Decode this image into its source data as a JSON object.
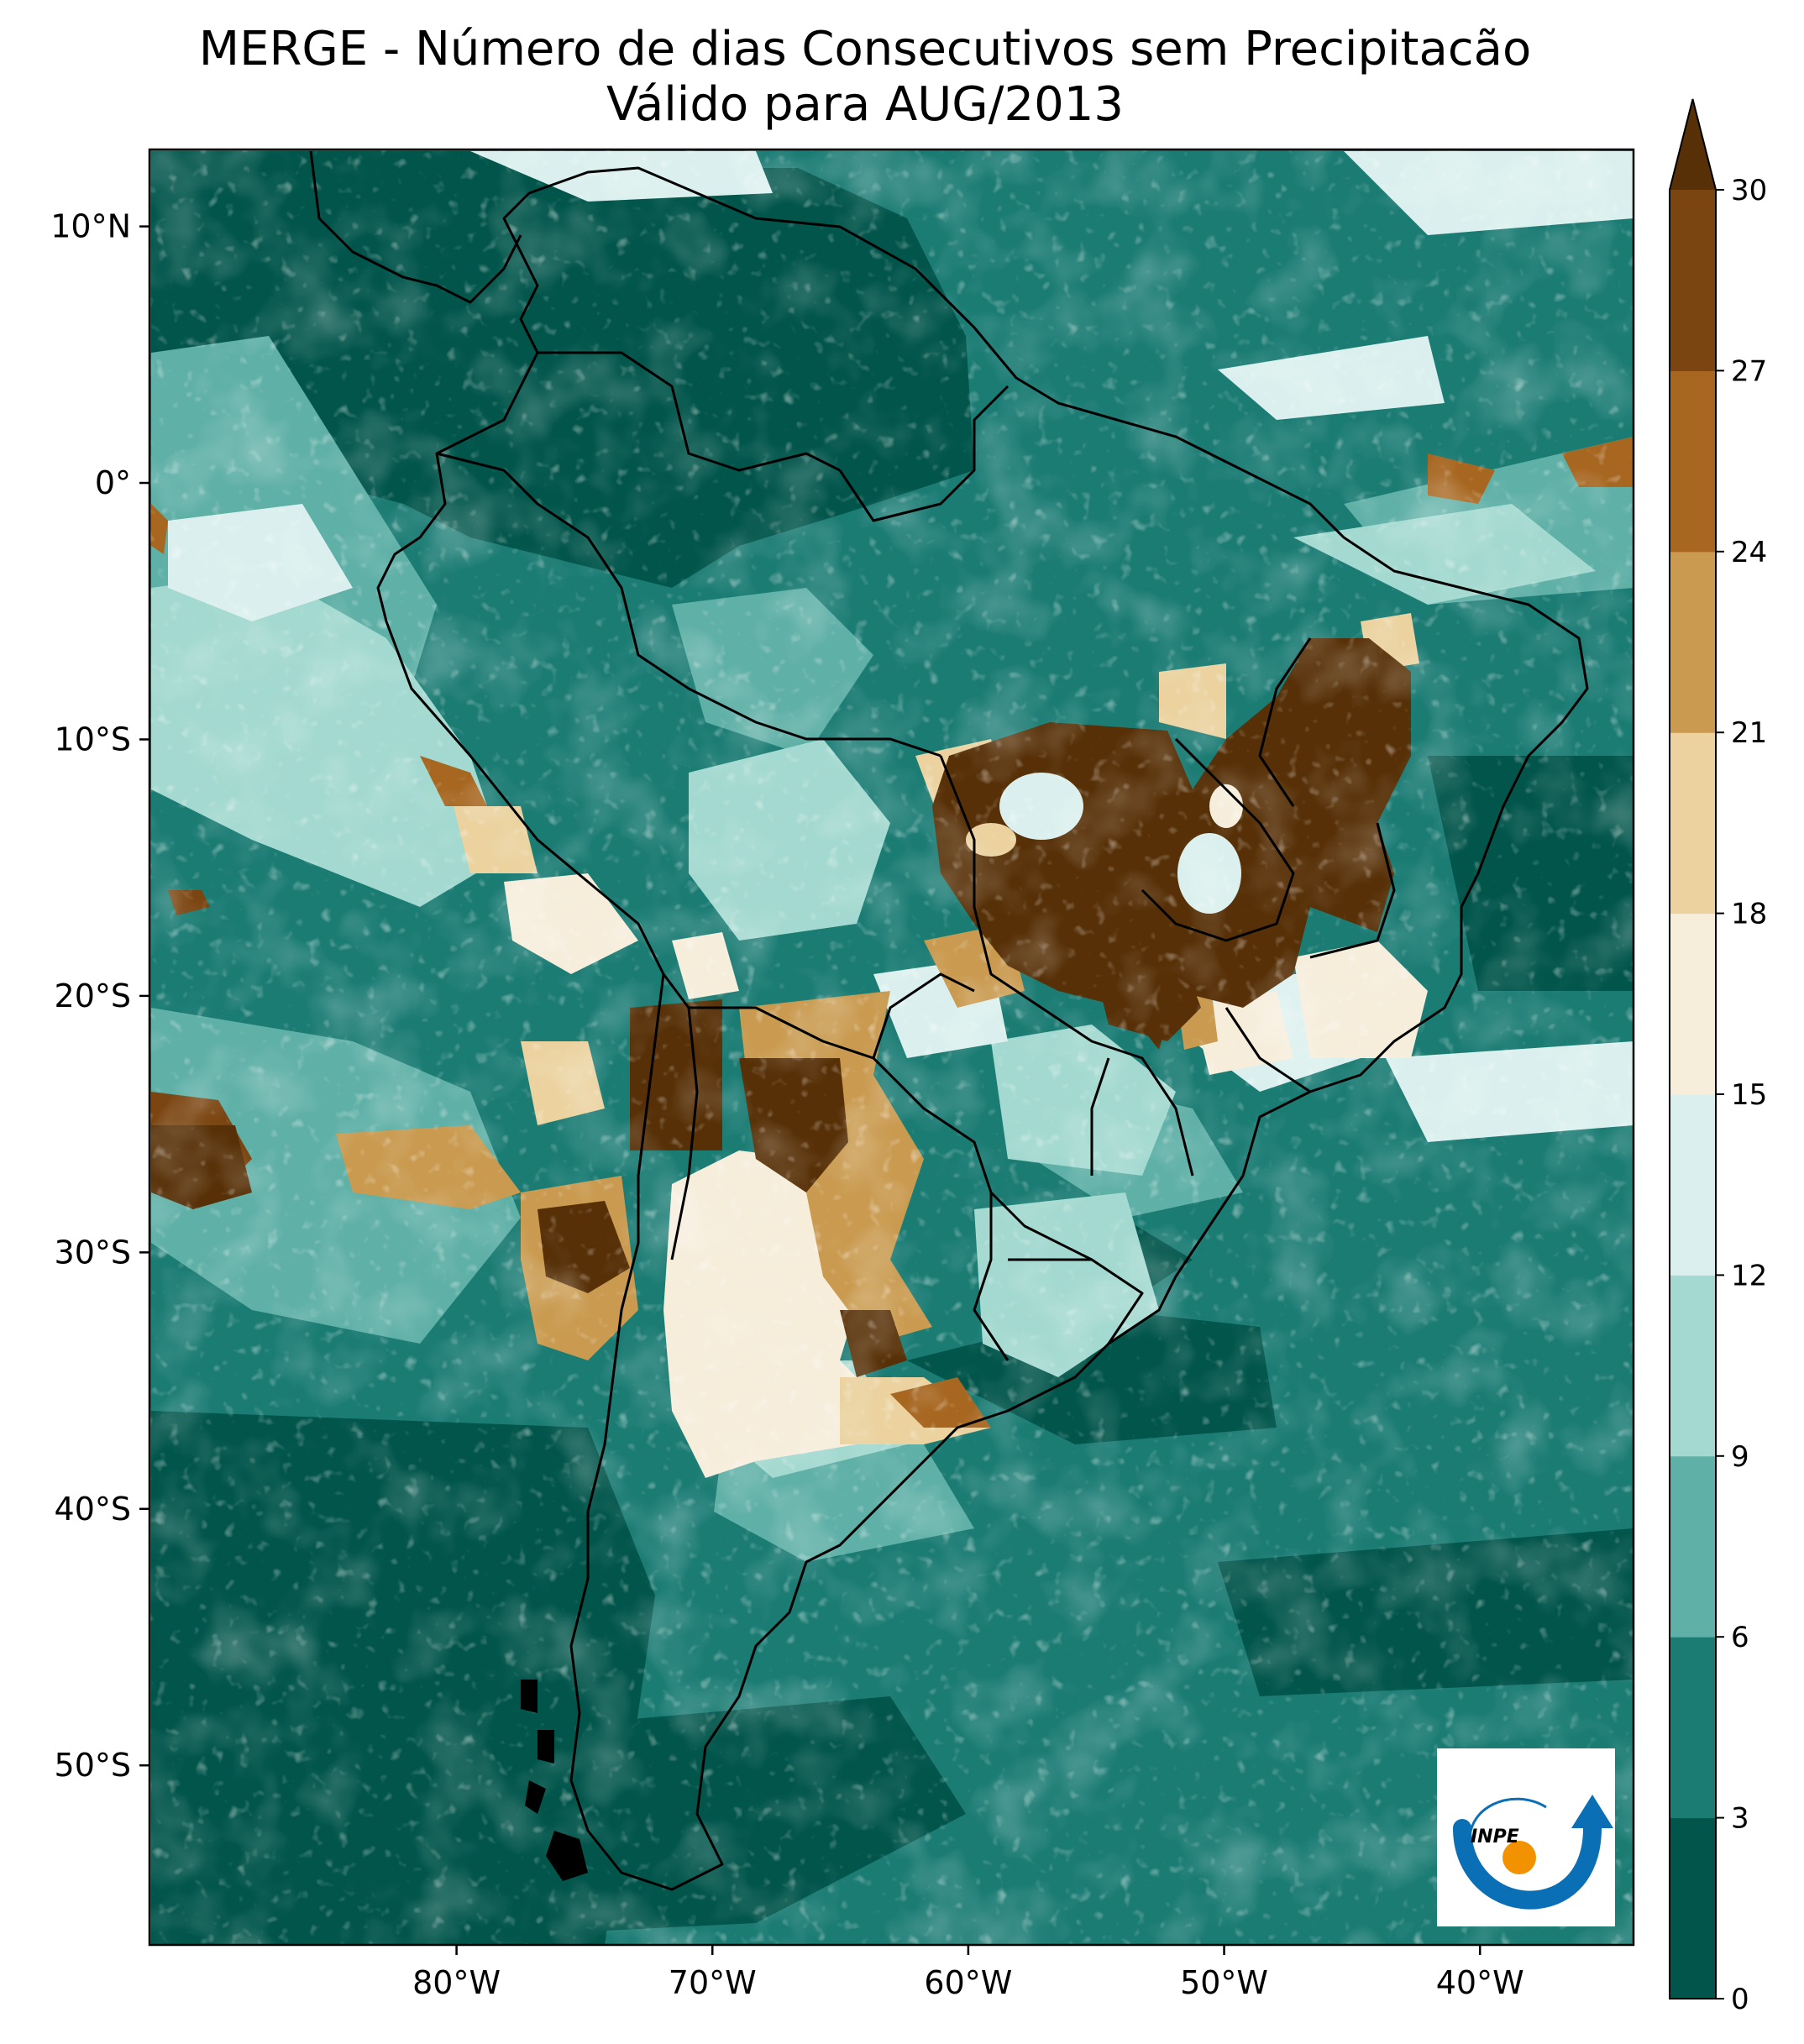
{
  "title": {
    "line1": "MERGE - Número de dias Consecutivos sem Precipitacão",
    "line2": "Válido para AUG/2013"
  },
  "map": {
    "lon_range": [
      -92,
      -34
    ],
    "lat_range": [
      -57,
      13
    ],
    "lat_ticks": [
      {
        "value": 10,
        "label": "10°N"
      },
      {
        "value": 0,
        "label": "0°"
      },
      {
        "value": -10,
        "label": "10°S"
      },
      {
        "value": -20,
        "label": "20°S"
      },
      {
        "value": -30,
        "label": "30°S"
      },
      {
        "value": -40,
        "label": "40°S"
      },
      {
        "value": -50,
        "label": "50°S"
      }
    ],
    "lon_ticks": [
      {
        "value": -80,
        "label": "80°W"
      },
      {
        "value": -70,
        "label": "70°W"
      },
      {
        "value": -60,
        "label": "60°W"
      },
      {
        "value": -50,
        "label": "50°W"
      },
      {
        "value": -40,
        "label": "40°W"
      }
    ],
    "background_color": "#1b7c74",
    "border_color": "#000000"
  },
  "colorbar": {
    "extend": "max",
    "levels": [
      0,
      3,
      6,
      9,
      12,
      15,
      18,
      21,
      24,
      27,
      30
    ],
    "tick_labels": [
      "0",
      "3",
      "6",
      "9",
      "12",
      "15",
      "18",
      "21",
      "24",
      "27",
      "30"
    ],
    "colors": [
      "#01554b",
      "#1b7c74",
      "#5fb0a7",
      "#a3d9d0",
      "#dbf0ee",
      "#f6eddb",
      "#ebd29f",
      "#c99a4f",
      "#a76721",
      "#7b4511"
    ],
    "extend_color": "#573007"
  },
  "logo": {
    "text": "INPE",
    "colors": {
      "arc": "#0a6fb5",
      "sun": "#f39200"
    }
  }
}
